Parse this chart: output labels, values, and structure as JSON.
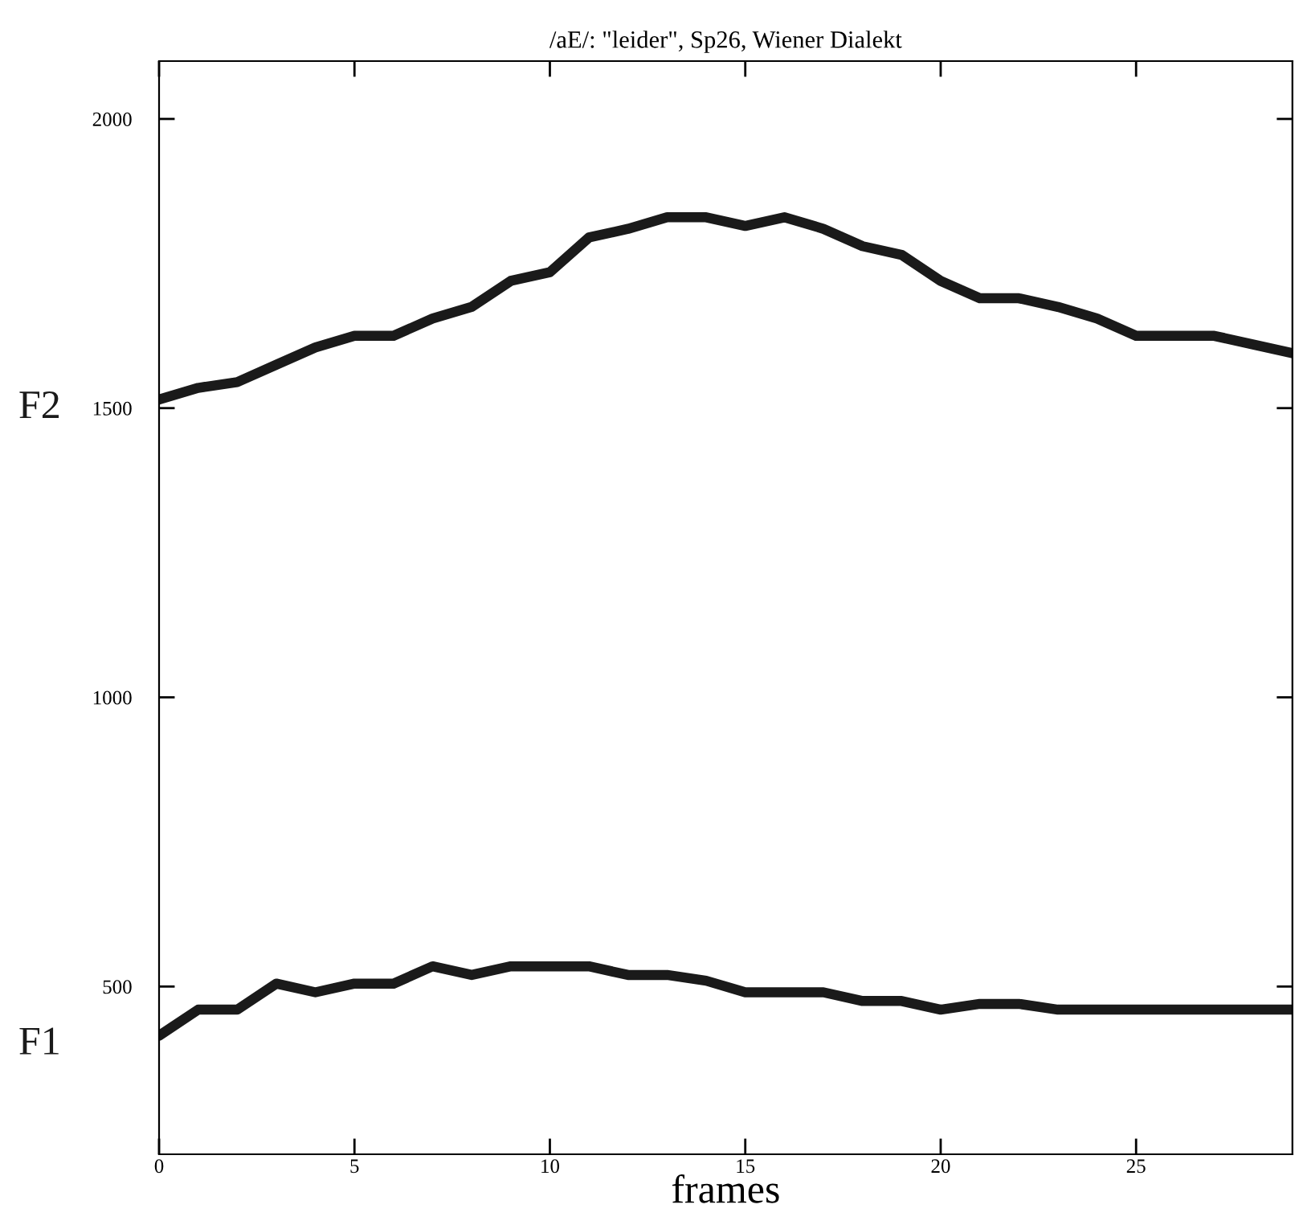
{
  "chart_data": {
    "type": "line",
    "title": "/aE/: \"leider\", Sp26, Wiener Dialekt",
    "xlabel": "frames",
    "x": [
      0,
      1,
      2,
      3,
      4,
      5,
      6,
      7,
      8,
      9,
      10,
      11,
      12,
      13,
      14,
      15,
      16,
      17,
      18,
      19,
      20,
      21,
      22,
      23,
      24,
      25,
      26,
      27,
      28,
      29
    ],
    "series": [
      {
        "name": "F2",
        "color": "#1a1a1a",
        "values": [
          1515,
          1535,
          1545,
          1575,
          1605,
          1625,
          1625,
          1655,
          1675,
          1720,
          1735,
          1795,
          1810,
          1830,
          1830,
          1815,
          1830,
          1810,
          1780,
          1765,
          1720,
          1690,
          1690,
          1675,
          1655,
          1625,
          1625,
          1625,
          1610,
          1595
        ]
      },
      {
        "name": "F1",
        "color": "#1a1a1a",
        "values": [
          415,
          460,
          460,
          505,
          490,
          505,
          505,
          535,
          520,
          535,
          535,
          535,
          520,
          520,
          510,
          490,
          490,
          490,
          475,
          475,
          460,
          470,
          470,
          460,
          460,
          460,
          460,
          460,
          460,
          460
        ]
      }
    ],
    "xlim": [
      0,
      29
    ],
    "ylim": [
      210,
      2100
    ],
    "xticks": [
      0,
      5,
      10,
      15,
      20,
      25
    ],
    "yticks": [
      500,
      1000,
      1500,
      2000
    ],
    "grid": false,
    "legend": false,
    "marker": "none",
    "line_style": "solid"
  }
}
